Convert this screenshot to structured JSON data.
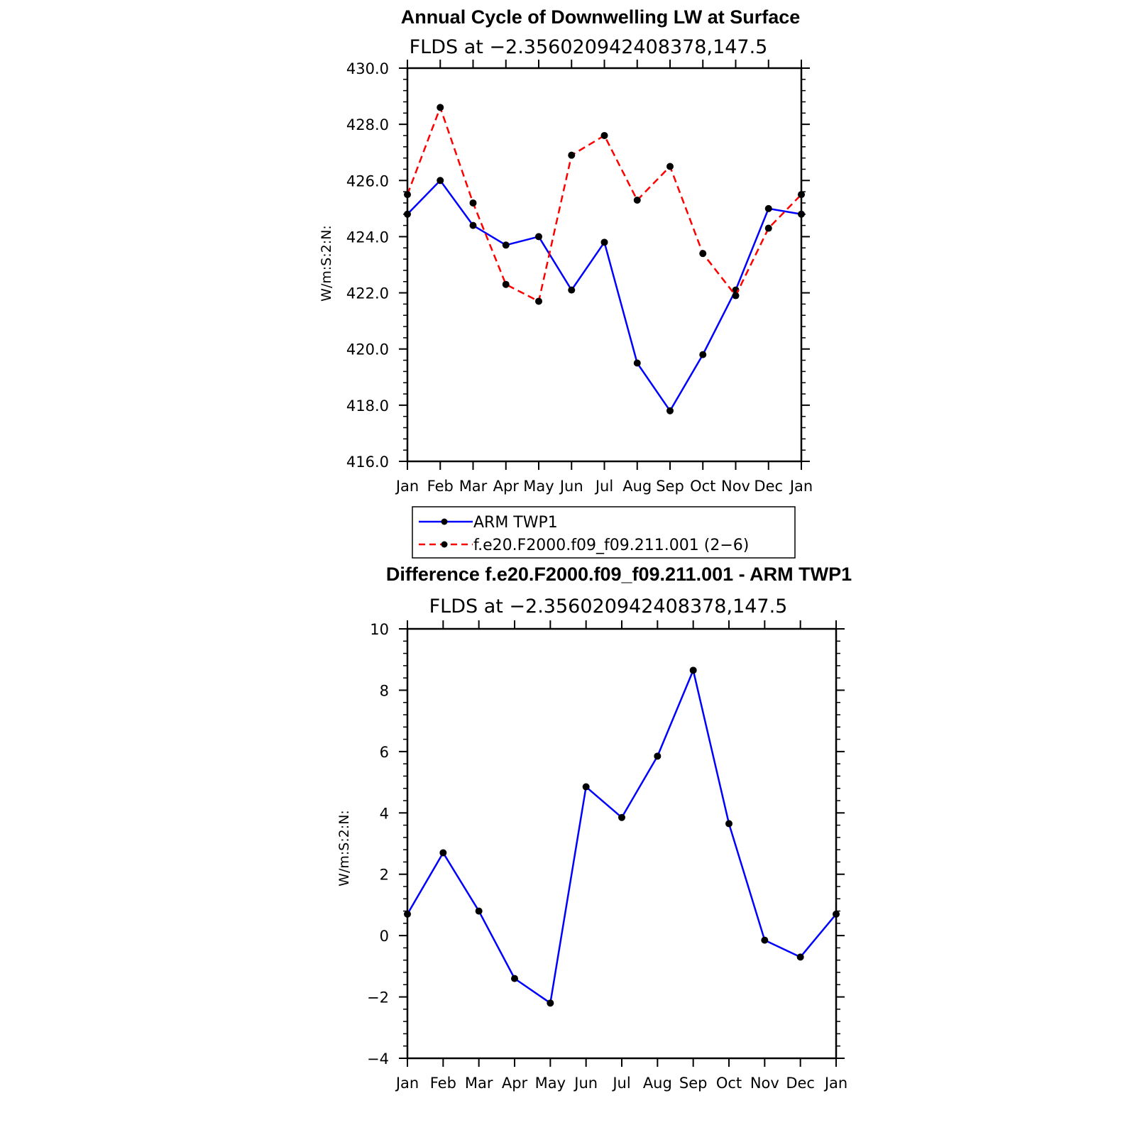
{
  "chart_data": [
    {
      "type": "line",
      "title": "Annual Cycle of Downwelling LW at Surface",
      "subtitle": "FLDS at −2.356020942408378,147.5",
      "ylabel": "W/m:S:2:N:",
      "xlabel": "",
      "categories": [
        "Jan",
        "Feb",
        "Mar",
        "Apr",
        "May",
        "Jun",
        "Jul",
        "Aug",
        "Sep",
        "Oct",
        "Nov",
        "Dec",
        "Jan"
      ],
      "ylim": [
        416,
        430
      ],
      "yticks": [
        "416.0",
        "418.0",
        "420.0",
        "422.0",
        "424.0",
        "426.0",
        "428.0",
        "430.0"
      ],
      "grid": false,
      "legend_position": "below",
      "series": [
        {
          "name": "ARM TWP1",
          "color": "#0000ff",
          "dash": "solid",
          "values": [
            424.8,
            426.0,
            424.4,
            423.7,
            424.0,
            422.1,
            423.8,
            419.5,
            417.8,
            419.8,
            422.1,
            425.0,
            424.8
          ]
        },
        {
          "name": "f.e20.F2000.f09_f09.211.001 (2−6)",
          "color": "#ff0000",
          "dash": "dashed",
          "values": [
            425.5,
            428.6,
            425.2,
            422.3,
            421.7,
            426.9,
            427.6,
            425.3,
            426.5,
            423.4,
            421.9,
            424.3,
            425.5
          ]
        }
      ]
    },
    {
      "type": "line",
      "title": "Difference f.e20.F2000.f09_f09.211.001 - ARM TWP1",
      "subtitle": "FLDS at −2.356020942408378,147.5",
      "ylabel": "W/m:S:2:N:",
      "xlabel": "",
      "categories": [
        "Jan",
        "Feb",
        "Mar",
        "Apr",
        "May",
        "Jun",
        "Jul",
        "Aug",
        "Sep",
        "Oct",
        "Nov",
        "Dec",
        "Jan"
      ],
      "ylim": [
        -4,
        10
      ],
      "yticks": [
        "−4",
        "−2",
        "0",
        "2",
        "4",
        "6",
        "8",
        "10"
      ],
      "grid": false,
      "series": [
        {
          "name": "",
          "color": "#0000ff",
          "dash": "solid",
          "values": [
            0.7,
            2.7,
            0.8,
            -1.4,
            -2.2,
            4.85,
            3.85,
            5.85,
            8.65,
            3.65,
            -0.15,
            -0.7,
            0.7
          ]
        }
      ]
    }
  ]
}
